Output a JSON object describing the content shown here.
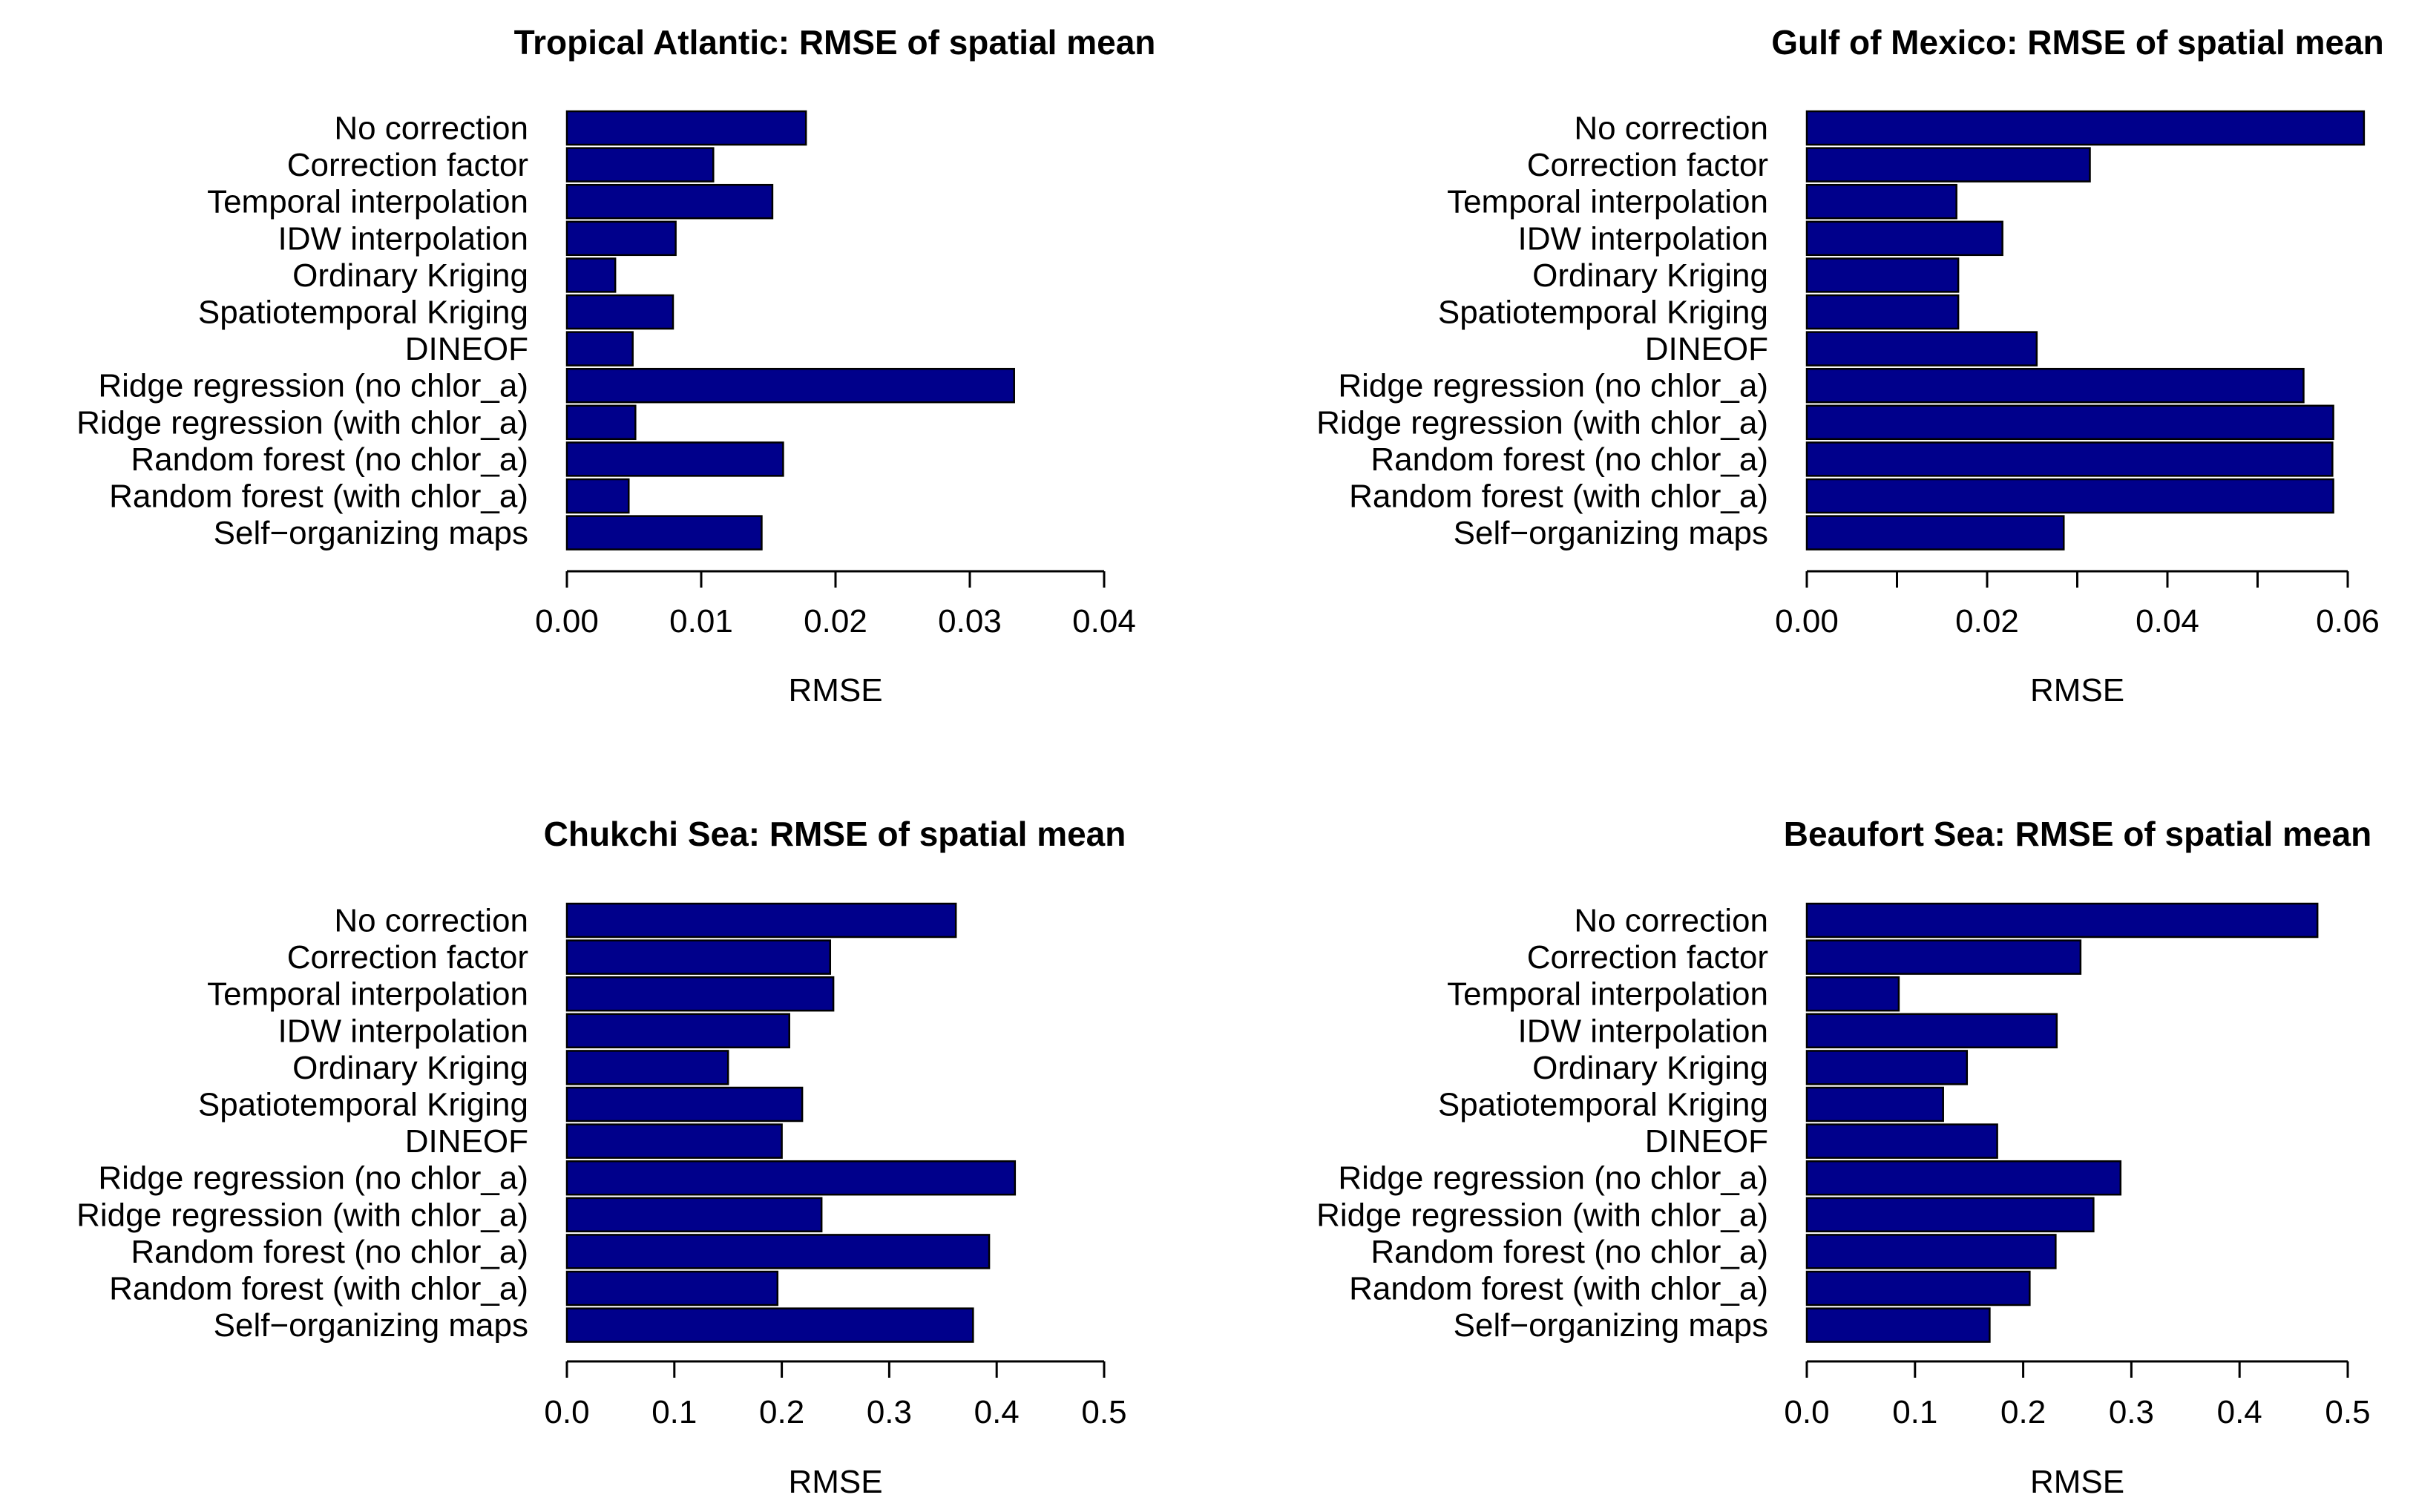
{
  "chart_data": [
    {
      "type": "bar",
      "orientation": "horizontal",
      "title": "Tropical Atlantic: RMSE of spatial mean",
      "xlabel": "RMSE",
      "ylabel": "",
      "xlim": [
        0,
        0.04
      ],
      "ticks": [
        0,
        0.01,
        0.02,
        0.03,
        0.04
      ],
      "tick_labels": [
        "0.00",
        "0.01",
        "0.02",
        "0.03",
        "0.04"
      ],
      "bar_color": "#00008B",
      "categories": [
        "No correction",
        "Correction factor",
        "Temporal interpolation",
        "IDW interpolation",
        "Ordinary Kriging",
        "Spatiotemporal Kriging",
        "DINEOF",
        "Ridge regression (no chlor_a)",
        "Ridge regression (with chlor_a)",
        "Random forest (no chlor_a)",
        "Random forest (with chlor_a)",
        "Self−organizing maps"
      ],
      "values": [
        0.0178,
        0.0109,
        0.0153,
        0.0081,
        0.0036,
        0.0079,
        0.0049,
        0.0333,
        0.0051,
        0.0161,
        0.0046,
        0.0145
      ]
    },
    {
      "type": "bar",
      "orientation": "horizontal",
      "title": "Gulf of Mexico: RMSE of spatial mean",
      "xlabel": "RMSE",
      "ylabel": "",
      "xlim": [
        0,
        0.06
      ],
      "ticks": [
        0,
        0.01,
        0.02,
        0.03,
        0.04,
        0.05,
        0.06
      ],
      "tick_labels": [
        "0.00",
        "",
        "0.02",
        "",
        "0.04",
        "",
        "0.06"
      ],
      "bar_color": "#00008B",
      "categories": [
        "No correction",
        "Correction factor",
        "Temporal interpolation",
        "IDW interpolation",
        "Ordinary Kriging",
        "Spatiotemporal Kriging",
        "DINEOF",
        "Ridge regression (no chlor_a)",
        "Ridge regression (with chlor_a)",
        "Random forest (no chlor_a)",
        "Random forest (with chlor_a)",
        "Self−organizing maps"
      ],
      "values": [
        0.0618,
        0.0314,
        0.0166,
        0.0217,
        0.0168,
        0.0168,
        0.0255,
        0.0551,
        0.0584,
        0.0583,
        0.0584,
        0.0285
      ]
    },
    {
      "type": "bar",
      "orientation": "horizontal",
      "title": "Chukchi Sea: RMSE of spatial mean",
      "xlabel": "RMSE",
      "ylabel": "",
      "xlim": [
        0,
        0.5
      ],
      "ticks": [
        0,
        0.1,
        0.2,
        0.3,
        0.4,
        0.5
      ],
      "tick_labels": [
        "0.0",
        "0.1",
        "0.2",
        "0.3",
        "0.4",
        "0.5"
      ],
      "bar_color": "#00008B",
      "categories": [
        "No correction",
        "Correction factor",
        "Temporal interpolation",
        "IDW interpolation",
        "Ordinary Kriging",
        "Spatiotemporal Kriging",
        "DINEOF",
        "Ridge regression (no chlor_a)",
        "Ridge regression (with chlor_a)",
        "Random forest (no chlor_a)",
        "Random forest (with chlor_a)",
        "Self−organizing maps"
      ],
      "values": [
        0.362,
        0.245,
        0.248,
        0.207,
        0.15,
        0.219,
        0.2,
        0.417,
        0.237,
        0.393,
        0.196,
        0.378
      ]
    },
    {
      "type": "bar",
      "orientation": "horizontal",
      "title": "Beaufort Sea: RMSE of spatial mean",
      "xlabel": "RMSE",
      "ylabel": "",
      "xlim": [
        0,
        0.5
      ],
      "ticks": [
        0,
        0.1,
        0.2,
        0.3,
        0.4,
        0.5
      ],
      "tick_labels": [
        "0.0",
        "0.1",
        "0.2",
        "0.3",
        "0.4",
        "0.5"
      ],
      "bar_color": "#00008B",
      "categories": [
        "No correction",
        "Correction factor",
        "Temporal interpolation",
        "IDW interpolation",
        "Ordinary Kriging",
        "Spatiotemporal Kriging",
        "DINEOF",
        "Ridge regression (no chlor_a)",
        "Ridge regression (with chlor_a)",
        "Random forest (no chlor_a)",
        "Random forest (with chlor_a)",
        "Self−organizing maps"
      ],
      "values": [
        0.472,
        0.253,
        0.085,
        0.231,
        0.148,
        0.126,
        0.176,
        0.29,
        0.265,
        0.23,
        0.206,
        0.169
      ]
    }
  ]
}
